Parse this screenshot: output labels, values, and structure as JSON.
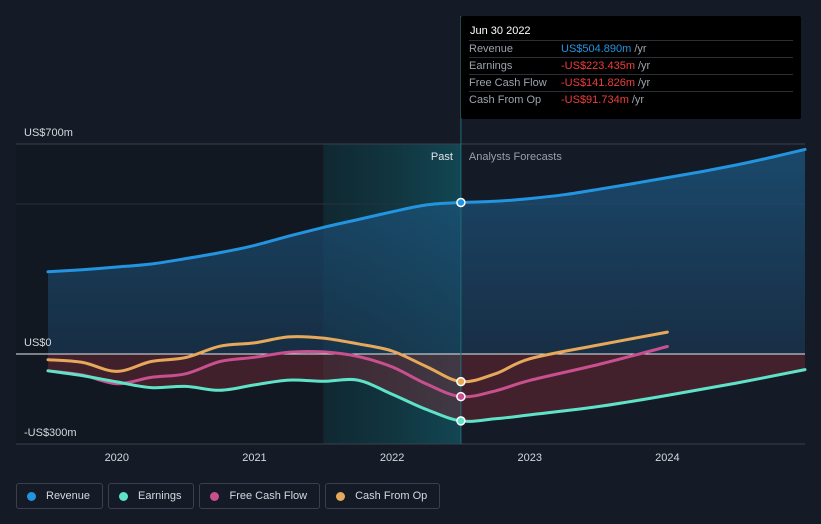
{
  "chart_data": {
    "type": "area",
    "y_unit": "US$m",
    "ylim": [
      -300,
      700
    ],
    "y_ticks": [
      {
        "value": 700,
        "label": "US$700m"
      },
      {
        "value": 0,
        "label": "US$0"
      },
      {
        "value": -300,
        "label": "-US$300m"
      }
    ],
    "x_ticks": [
      "2020",
      "2021",
      "2022",
      "2023",
      "2024"
    ],
    "past_label": "Past",
    "forecast_label": "Analysts Forecasts",
    "series": [
      {
        "name": "Revenue",
        "color": "#2394df",
        "points": [
          [
            2019.5,
            274
          ],
          [
            2019.75,
            281
          ],
          [
            2020.0,
            290
          ],
          [
            2020.25,
            300
          ],
          [
            2020.5,
            318
          ],
          [
            2020.75,
            338
          ],
          [
            2021.0,
            362
          ],
          [
            2021.25,
            393
          ],
          [
            2021.5,
            422
          ],
          [
            2021.75,
            448
          ],
          [
            2022.0,
            474
          ],
          [
            2022.25,
            497
          ],
          [
            2022.5,
            505
          ],
          [
            2022.75,
            509
          ],
          [
            2023.0,
            518
          ],
          [
            2023.25,
            531
          ],
          [
            2023.5,
            549
          ],
          [
            2023.75,
            568
          ],
          [
            2024.0,
            588
          ],
          [
            2024.25,
            608
          ],
          [
            2024.5,
            630
          ],
          [
            2024.75,
            655
          ],
          [
            2025.0,
            682
          ]
        ]
      },
      {
        "name": "Earnings",
        "color": "#5fe3c8",
        "points": [
          [
            2019.5,
            -56
          ],
          [
            2019.75,
            -72
          ],
          [
            2020.0,
            -93
          ],
          [
            2020.25,
            -112
          ],
          [
            2020.5,
            -108
          ],
          [
            2020.75,
            -121
          ],
          [
            2021.0,
            -103
          ],
          [
            2021.25,
            -87
          ],
          [
            2021.5,
            -91
          ],
          [
            2021.75,
            -87
          ],
          [
            2022.0,
            -134
          ],
          [
            2022.25,
            -185
          ],
          [
            2022.5,
            -223
          ],
          [
            2022.75,
            -216
          ],
          [
            2023.0,
            -203
          ],
          [
            2023.5,
            -175
          ],
          [
            2024.0,
            -138
          ],
          [
            2024.5,
            -97
          ],
          [
            2025.0,
            -52
          ]
        ]
      },
      {
        "name": "Free Cash Flow",
        "color": "#c8508f",
        "points": [
          [
            2019.5,
            -56
          ],
          [
            2019.75,
            -70
          ],
          [
            2020.0,
            -99
          ],
          [
            2020.25,
            -78
          ],
          [
            2020.5,
            -66
          ],
          [
            2020.75,
            -25
          ],
          [
            2021.0,
            -11
          ],
          [
            2021.25,
            6
          ],
          [
            2021.5,
            7
          ],
          [
            2021.75,
            -8
          ],
          [
            2022.0,
            -43
          ],
          [
            2022.25,
            -100
          ],
          [
            2022.5,
            -142
          ],
          [
            2022.75,
            -123
          ],
          [
            2023.0,
            -88
          ],
          [
            2023.5,
            -35
          ],
          [
            2024.0,
            25
          ]
        ]
      },
      {
        "name": "Cash From Op",
        "color": "#e6a95b",
        "points": [
          [
            2019.5,
            -19
          ],
          [
            2019.75,
            -28
          ],
          [
            2020.0,
            -58
          ],
          [
            2020.25,
            -25
          ],
          [
            2020.5,
            -12
          ],
          [
            2020.75,
            26
          ],
          [
            2021.0,
            37
          ],
          [
            2021.25,
            57
          ],
          [
            2021.5,
            53
          ],
          [
            2021.75,
            34
          ],
          [
            2022.0,
            10
          ],
          [
            2022.25,
            -42
          ],
          [
            2022.5,
            -92
          ],
          [
            2022.75,
            -66
          ],
          [
            2023.0,
            -16
          ],
          [
            2023.5,
            30
          ],
          [
            2024.0,
            73
          ]
        ]
      }
    ],
    "highlight_x": 2022.5,
    "grid": false,
    "legend_position": "bottom-left"
  },
  "tooltip": {
    "date": "Jun 30 2022",
    "rows": [
      {
        "label": "Revenue",
        "value": "US$504.890m",
        "unit": "/yr",
        "color": "#2394df"
      },
      {
        "label": "Earnings",
        "value": "-US$223.435m",
        "unit": "/yr",
        "color": "#ee3d3d"
      },
      {
        "label": "Free Cash Flow",
        "value": "-US$141.826m",
        "unit": "/yr",
        "color": "#ee3d3d"
      },
      {
        "label": "Cash From Op",
        "value": "-US$91.734m",
        "unit": "/yr",
        "color": "#ee3d3d"
      }
    ]
  },
  "legend": [
    {
      "label": "Revenue",
      "color": "#2394df"
    },
    {
      "label": "Earnings",
      "color": "#5fe3c8"
    },
    {
      "label": "Free Cash Flow",
      "color": "#c8508f"
    },
    {
      "label": "Cash From Op",
      "color": "#e6a95b"
    }
  ]
}
